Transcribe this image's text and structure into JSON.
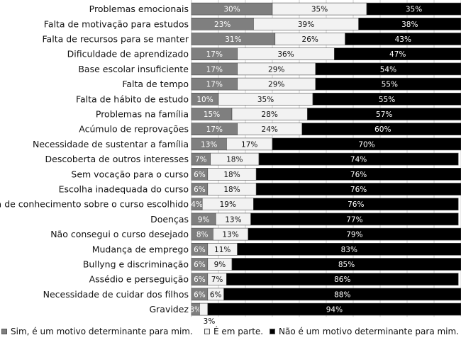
{
  "chart_data": {
    "type": "bar",
    "orientation": "horizontal",
    "stacked": true,
    "percent": true,
    "xlim": [
      0,
      100
    ],
    "grid": true,
    "legend_position": "bottom",
    "categories": [
      "Problemas emocionais",
      "Falta de motivação para estudos",
      "Falta de recursos para se manter",
      "Dificuldade de aprendizado",
      "Base escolar insuficiente",
      "Falta de tempo",
      "Falta de hábito de estudo",
      "Problemas na família",
      "Acúmulo de reprovações",
      "Necessidade de sustentar a família",
      "Descoberta de outros interesses",
      "Sem vocação para o curso",
      "Escolha inadequada do curso",
      "Falta de conhecimento sobre o curso escolhido",
      "Doenças",
      "Não consegui o curso desejado",
      "Mudança de emprego",
      "Bullyng e discriminação",
      "Assédio e perseguição",
      "Necessidade de cuidar dos filhos",
      "Gravidez"
    ],
    "series": [
      {
        "name": "Sim, é um motivo determinante para mim.",
        "color": "#7f7f7f",
        "text_color": "#ffffff",
        "values": [
          30,
          23,
          31,
          17,
          17,
          17,
          10,
          15,
          17,
          13,
          7,
          6,
          6,
          4,
          9,
          8,
          6,
          6,
          6,
          6,
          3
        ]
      },
      {
        "name": "É em parte.",
        "color": "#f2f2f2",
        "text_color": "#111111",
        "values": [
          35,
          39,
          26,
          36,
          29,
          29,
          35,
          28,
          24,
          17,
          18,
          18,
          18,
          19,
          13,
          13,
          11,
          9,
          7,
          6,
          3
        ]
      },
      {
        "name": "Não é um motivo determinante para mim.",
        "color": "#000000",
        "text_color": "#ffffff",
        "values": [
          35,
          38,
          43,
          47,
          54,
          55,
          55,
          57,
          60,
          70,
          74,
          76,
          76,
          76,
          77,
          79,
          83,
          85,
          86,
          88,
          94
        ]
      }
    ],
    "value_suffix": "%"
  }
}
